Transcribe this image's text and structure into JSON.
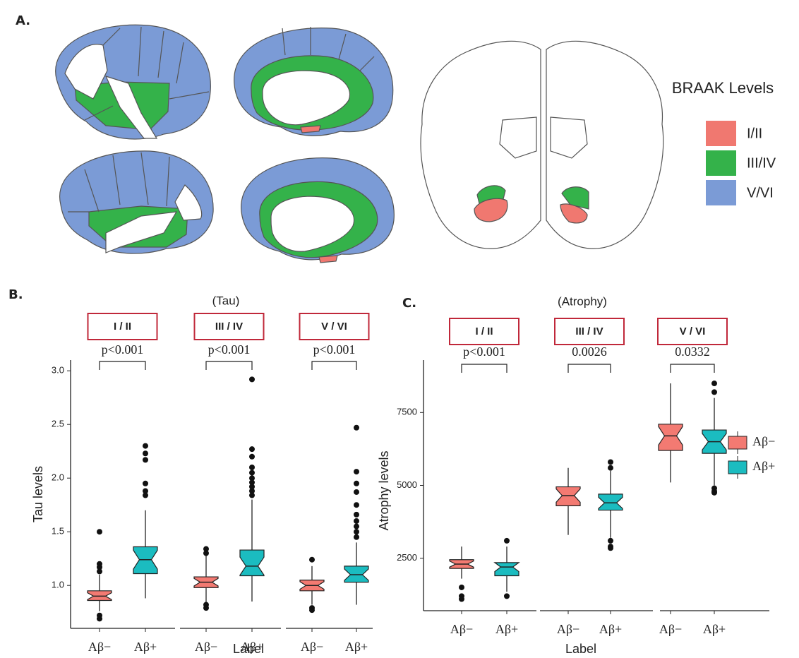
{
  "panel_a": {
    "label": "A.",
    "legend_title": "BRAAK Levels",
    "legend": [
      {
        "label": "I/II",
        "color": "#f07870"
      },
      {
        "label": "III/IV",
        "color": "#34b24a"
      },
      {
        "label": "V/VI",
        "color": "#7b9bd6"
      }
    ]
  },
  "chart_data": [
    {
      "type": "boxplot",
      "panel_label": "B.",
      "title": "(Tau)",
      "y_label": "Tau levels",
      "x_label": "Label",
      "colors": [
        "#f37a72",
        "#1bbcc0"
      ],
      "ylim": [
        0.6,
        3.1
      ],
      "yticks": [
        {
          "value": 1,
          "label": "1.0"
        },
        1.5,
        {
          "value": 2,
          "label": "2.0"
        },
        2.5,
        {
          "value": 3,
          "label": "3.0"
        }
      ],
      "facets": [
        {
          "label": "I / II",
          "p_value": "p<0.001",
          "categories": [
            "Aβ−",
            "Aβ+"
          ],
          "boxes": [
            {
              "whisker_low": 0.76,
              "q1": 0.86,
              "median": 0.9,
              "q3": 0.95,
              "whisker_high": 1.1,
              "outliers": [
                1.5,
                1.2,
                1.17,
                1.13,
                0.72,
                0.69
              ]
            },
            {
              "whisker_low": 0.88,
              "q1": 1.11,
              "median": 1.24,
              "q3": 1.36,
              "whisker_high": 1.7,
              "outliers": [
                1.84,
                1.88,
                1.95,
                2.17,
                2.23,
                2.3
              ]
            }
          ]
        },
        {
          "label": "III / IV",
          "p_value": "p<0.001",
          "categories": [
            "Aβ−",
            "Aβ+"
          ],
          "boxes": [
            {
              "whisker_low": 0.84,
              "q1": 0.98,
              "median": 1.03,
              "q3": 1.08,
              "whisker_high": 1.28,
              "outliers": [
                1.3,
                1.34,
                0.82,
                0.79
              ]
            },
            {
              "whisker_low": 0.85,
              "q1": 1.09,
              "median": 1.18,
              "q3": 1.33,
              "whisker_high": 1.8,
              "outliers": [
                1.84,
                1.88,
                1.92,
                1.96,
                2.0,
                2.05,
                2.1,
                2.2,
                2.27,
                2.92
              ]
            }
          ]
        },
        {
          "label": "V / VI",
          "p_value": "p<0.001",
          "categories": [
            "Aβ−",
            "Aβ+"
          ],
          "boxes": [
            {
              "whisker_low": 0.82,
              "q1": 0.95,
              "median": 1.0,
              "q3": 1.05,
              "whisker_high": 1.18,
              "outliers": [
                1.24,
                0.79,
                0.77
              ]
            },
            {
              "whisker_low": 0.82,
              "q1": 1.03,
              "median": 1.1,
              "q3": 1.18,
              "whisker_high": 1.4,
              "outliers": [
                1.45,
                1.5,
                1.55,
                1.6,
                1.66,
                1.75,
                1.87,
                1.95,
                2.06,
                2.47
              ]
            }
          ]
        }
      ]
    },
    {
      "type": "boxplot",
      "panel_label": "C.",
      "title": "(Atrophy)",
      "y_label": "Atrophy levels",
      "x_label": "Label",
      "colors": [
        "#f37a72",
        "#1bbcc0"
      ],
      "legend": [
        "Aβ−",
        "Aβ+"
      ],
      "ylim": [
        700,
        9300
      ],
      "yticks": [
        2500,
        5000,
        7500
      ],
      "facets": [
        {
          "label": "I / II",
          "p_value": "p<0.001",
          "categories": [
            "Aβ−",
            "Aβ+"
          ],
          "boxes": [
            {
              "whisker_low": 1800,
              "q1": 2150,
              "median": 2300,
              "q3": 2450,
              "whisker_high": 2900,
              "outliers": [
                1500,
                1200,
                1100
              ]
            },
            {
              "whisker_low": 1350,
              "q1": 1900,
              "median": 2200,
              "q3": 2350,
              "whisker_high": 2900,
              "outliers": [
                3100,
                1200
              ]
            }
          ]
        },
        {
          "label": "III / IV",
          "p_value": "0.0026",
          "categories": [
            "Aβ−",
            "Aβ+"
          ],
          "boxes": [
            {
              "whisker_low": 3300,
              "q1": 4300,
              "median": 4650,
              "q3": 4950,
              "whisker_high": 5600,
              "outliers": []
            },
            {
              "whisker_low": 3200,
              "q1": 4150,
              "median": 4400,
              "q3": 4700,
              "whisker_high": 5500,
              "outliers": [
                5800,
                5600,
                3100,
                2900,
                2850
              ]
            }
          ]
        },
        {
          "label": "V / VI",
          "p_value": "0.0332",
          "categories": [
            "Aβ−",
            "Aβ+"
          ],
          "boxes": [
            {
              "whisker_low": 5100,
              "q1": 6200,
              "median": 6700,
              "q3": 7100,
              "whisker_high": 8500,
              "outliers": []
            },
            {
              "whisker_low": 5000,
              "q1": 6100,
              "median": 6500,
              "q3": 6900,
              "whisker_high": 8000,
              "outliers": [
                8200,
                8500,
                4900,
                4800,
                4750
              ]
            }
          ]
        }
      ]
    }
  ]
}
